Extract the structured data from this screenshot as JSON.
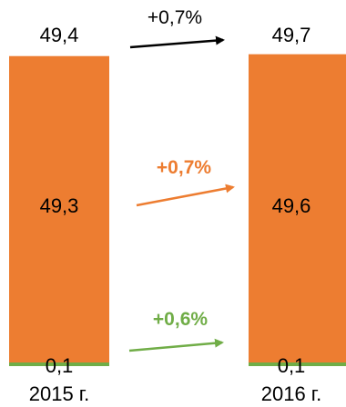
{
  "chart_data": {
    "type": "bar",
    "stacked": true,
    "categories": [
      "2015 г.",
      "2016 г."
    ],
    "series": [
      {
        "values": [
          0.1,
          0.1
        ],
        "color": "#70ad47"
      },
      {
        "values": [
          49.3,
          49.6
        ],
        "color": "#ed7d31"
      }
    ],
    "totals": [
      "49,4",
      "49,7"
    ],
    "segment_labels": [
      [
        "0,1",
        "49,3"
      ],
      [
        "0,1",
        "49,6"
      ]
    ],
    "changes": [
      {
        "label": "+0,7%",
        "color": "#000000",
        "applies_to": "total"
      },
      {
        "label": "+0,7%",
        "color": "#ed7d31",
        "applies_to": "series_2"
      },
      {
        "label": "+0,6%",
        "color": "#70ad47",
        "applies_to": "series_1"
      }
    ],
    "grid": false,
    "legend": "none"
  }
}
